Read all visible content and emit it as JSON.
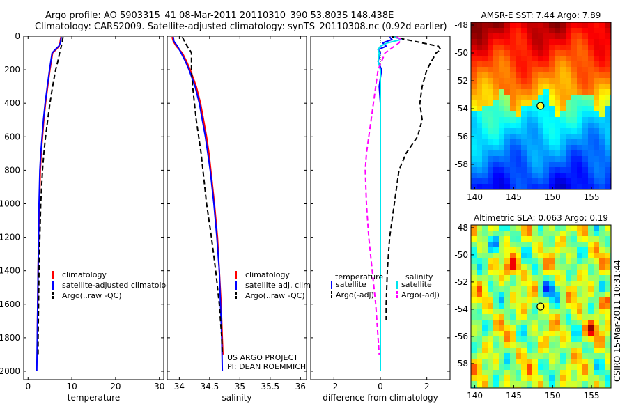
{
  "header": {
    "line1": "Argo profile: AO 5903315_41 08-Mar-2011 20110310_390 53.803S 148.438E",
    "line2": "Climatology: CARS2009. Satellite-adjusted climatology: synTS_20110308.nc (0.92d earlier)"
  },
  "side_label": "CSIRO 15-Mar-2011 10:31:44",
  "project": {
    "line1": "US ARGO PROJECT",
    "line2": "PI: DEAN ROEMMICH"
  },
  "colors": {
    "climatology": "#ff0000",
    "satellite": "#0000ff",
    "argo": "#000000",
    "satellite_salinity": "#00e5ee",
    "argo_salinity": "#ff00ff"
  },
  "chart_data": [
    {
      "type": "line",
      "xlabel": "temperature",
      "ylabel": "",
      "xlim": [
        -1,
        31
      ],
      "ylim": [
        2050,
        0
      ],
      "x_ticks": [
        0,
        10,
        20,
        30
      ],
      "y_ticks": [
        0,
        200,
        400,
        600,
        800,
        1000,
        1200,
        1400,
        1600,
        1800,
        2000
      ],
      "legend": {
        "position": "lower-right",
        "entries": [
          "climatology",
          "satellite-adjusted climatology",
          "Argo(..raw -QC)"
        ]
      },
      "series": [
        {
          "name": "climatology",
          "color": "#ff0000",
          "style": "solid",
          "y": [
            5,
            20,
            40,
            60,
            80,
            100,
            150,
            200,
            300,
            400,
            500,
            600,
            700,
            800,
            1000,
            1200,
            1400,
            1600,
            1800,
            1900
          ],
          "values": [
            7.5,
            7.4,
            7.3,
            7.1,
            6.4,
            5.6,
            5.3,
            5.0,
            4.5,
            4.0,
            3.6,
            3.3,
            3.0,
            2.8,
            2.6,
            2.4,
            2.3,
            2.2,
            2.1,
            2.1
          ]
        },
        {
          "name": "satellite-adjusted climatology",
          "color": "#0000ff",
          "style": "solid",
          "y": [
            5,
            20,
            40,
            60,
            80,
            100,
            150,
            200,
            300,
            400,
            500,
            600,
            700,
            800,
            1000,
            1200,
            1400,
            1600,
            1800,
            2000
          ],
          "values": [
            7.6,
            7.5,
            7.4,
            7.0,
            6.2,
            5.5,
            5.2,
            4.9,
            4.4,
            3.9,
            3.5,
            3.2,
            2.9,
            2.7,
            2.5,
            2.4,
            2.3,
            2.2,
            2.1,
            2.0
          ]
        },
        {
          "name": "Argo(..raw -QC)",
          "color": "#000000",
          "style": "dashed",
          "y": [
            5,
            20,
            40,
            60,
            80,
            100,
            150,
            200,
            300,
            400,
            500,
            600,
            700,
            800,
            1000,
            1200,
            1400,
            1600,
            1800,
            1900
          ],
          "values": [
            8.0,
            7.9,
            7.8,
            7.6,
            7.4,
            7.2,
            6.8,
            6.3,
            5.6,
            5.0,
            4.5,
            4.0,
            3.6,
            3.3,
            2.9,
            2.7,
            2.5,
            2.4,
            2.3,
            2.3
          ]
        }
      ]
    },
    {
      "type": "line",
      "xlabel": "salinity",
      "ylabel": "",
      "xlim": [
        33.8,
        36.1
      ],
      "ylim": [
        2050,
        0
      ],
      "x_ticks": [
        34,
        34.5,
        35,
        35.5,
        36
      ],
      "legend": {
        "position": "lower-right",
        "entries": [
          "climatology",
          "satellite adj. clim.",
          "Argo(..raw -QC)"
        ]
      },
      "series": [
        {
          "name": "climatology",
          "color": "#ff0000",
          "style": "solid",
          "y": [
            5,
            30,
            60,
            100,
            150,
            200,
            300,
            400,
            500,
            600,
            700,
            800,
            1000,
            1200,
            1400,
            1600,
            1800,
            1900
          ],
          "values": [
            33.88,
            33.9,
            33.95,
            34.05,
            34.12,
            34.18,
            34.28,
            34.35,
            34.4,
            34.45,
            34.49,
            34.52,
            34.58,
            34.63,
            34.66,
            34.69,
            34.71,
            34.72
          ]
        },
        {
          "name": "satellite adj. clim.",
          "color": "#0000ff",
          "style": "solid",
          "y": [
            5,
            30,
            60,
            100,
            150,
            200,
            300,
            400,
            500,
            600,
            700,
            800,
            1000,
            1200,
            1400,
            1600,
            1800,
            2000
          ],
          "values": [
            33.9,
            33.91,
            33.97,
            34.03,
            34.1,
            34.16,
            34.26,
            34.33,
            34.38,
            34.43,
            34.47,
            34.51,
            34.57,
            34.62,
            34.66,
            34.68,
            34.7,
            34.71
          ]
        },
        {
          "name": "Argo(..raw -QC)",
          "color": "#000000",
          "style": "dashed",
          "y": [
            5,
            20,
            40,
            60,
            80,
            100,
            150,
            200,
            300,
            400,
            500,
            600,
            700,
            800,
            1000,
            1200,
            1400,
            1600,
            1800,
            1900
          ],
          "values": [
            34.05,
            34.07,
            34.1,
            34.13,
            34.17,
            34.2,
            34.2,
            34.2,
            34.22,
            34.25,
            34.28,
            34.32,
            34.36,
            34.39,
            34.45,
            34.53,
            34.6,
            34.66,
            34.7,
            34.71
          ]
        }
      ]
    },
    {
      "type": "line",
      "xlabel": "difference from climatology",
      "ylabel": "",
      "xlim": [
        -3,
        3
      ],
      "ylim": [
        2050,
        0
      ],
      "x_ticks": [
        -2,
        0,
        2
      ],
      "legend": {
        "position": "lower-center",
        "temperature_title": "temperature",
        "salinity_title": "salinity",
        "entries": [
          "satellite",
          "Argo(-adj)",
          "satellite",
          "Argo(-adj)"
        ]
      },
      "series": [
        {
          "name": "satellite",
          "group": "temperature",
          "color": "#0000ff",
          "style": "solid",
          "y": [
            5,
            20,
            40,
            60,
            80,
            100,
            150,
            200,
            250,
            300,
            400,
            500,
            700,
            1000,
            1500,
            2000
          ],
          "values": [
            0.4,
            0.5,
            0.1,
            0.25,
            -0.1,
            0.0,
            -0.1,
            0.05,
            0.0,
            -0.05,
            0.0,
            0.0,
            0.0,
            0.0,
            0.0,
            0.0
          ]
        },
        {
          "name": "Argo(-adj)",
          "group": "temperature",
          "color": "#000000",
          "style": "dashed",
          "y": [
            5,
            20,
            40,
            60,
            80,
            100,
            150,
            200,
            300,
            400,
            500,
            600,
            700,
            800,
            1000,
            1200,
            1400,
            1600,
            1700
          ],
          "values": [
            0.5,
            1.1,
            1.8,
            2.5,
            2.6,
            2.4,
            2.2,
            2.0,
            1.8,
            1.7,
            1.8,
            1.6,
            1.1,
            0.8,
            0.6,
            0.4,
            0.3,
            0.25,
            0.25
          ]
        },
        {
          "name": "satellite",
          "group": "salinity",
          "color": "#00e5ee",
          "style": "solid",
          "y": [
            5,
            20,
            40,
            60,
            80,
            100,
            150,
            200,
            300,
            400,
            500,
            700,
            1000,
            1500,
            2000
          ],
          "values": [
            0.6,
            0.9,
            0.3,
            0.0,
            -0.1,
            -0.05,
            -0.1,
            0.0,
            0.0,
            0.0,
            0.0,
            0.0,
            0.0,
            0.0,
            0.0
          ]
        },
        {
          "name": "Argo(-adj)",
          "group": "salinity",
          "color": "#ff00ff",
          "style": "dashed",
          "y": [
            5,
            20,
            40,
            60,
            80,
            100,
            150,
            200,
            300,
            400,
            500,
            600,
            700,
            800,
            1000,
            1200,
            1400,
            1600,
            1800,
            1900
          ],
          "values": [
            0.7,
            0.9,
            0.8,
            0.6,
            0.4,
            0.2,
            0.05,
            -0.1,
            -0.2,
            -0.3,
            -0.4,
            -0.5,
            -0.6,
            -0.65,
            -0.6,
            -0.5,
            -0.35,
            -0.2,
            -0.1,
            -0.05
          ]
        }
      ]
    },
    {
      "type": "heatmap",
      "title": "AMSR-E SST: 7.44 Argo: 7.89",
      "xlim": [
        139.5,
        157.5
      ],
      "ylim": [
        -59.8,
        -47.8
      ],
      "x_ticks": [
        140,
        145,
        150,
        155
      ],
      "y_ticks": [
        -48,
        -50,
        -52,
        -54,
        -56,
        -58
      ],
      "marker": {
        "lon": 148.438,
        "lat": -53.803
      },
      "colormap": "jet"
    },
    {
      "type": "heatmap",
      "title": "Altimetric SLA: 0.063 Argo: 0.19",
      "xlim": [
        139.5,
        157.5
      ],
      "ylim": [
        -59.8,
        -47.8
      ],
      "x_ticks": [
        140,
        145,
        150,
        155
      ],
      "y_ticks": [
        -48,
        -50,
        -52,
        -54,
        -56,
        -58
      ],
      "marker": {
        "lon": 148.438,
        "lat": -53.803
      },
      "colormap": "jet"
    }
  ]
}
